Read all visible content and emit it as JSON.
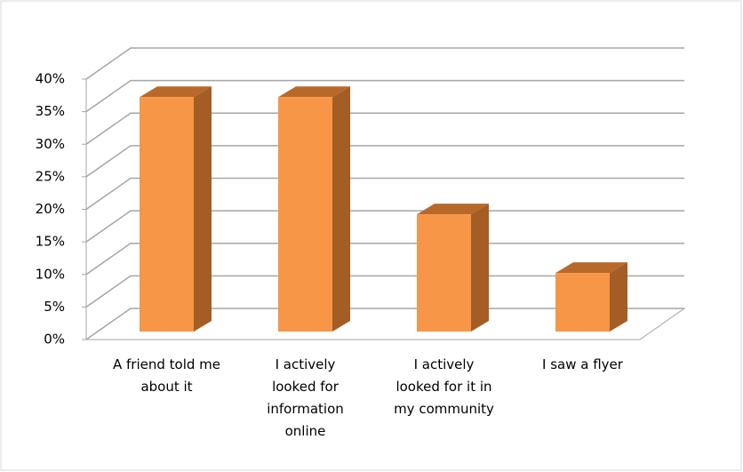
{
  "chart_data": {
    "type": "bar3d",
    "categories": [
      "A friend told me about it",
      "I actively looked for information online",
      "I actively looked for it in my community",
      "I saw a flyer"
    ],
    "values": [
      36,
      36,
      18,
      9
    ],
    "color": "#f79646",
    "ylim": [
      0,
      40
    ],
    "yticks": [
      {
        "value": 0,
        "label": "0%"
      },
      {
        "value": 5,
        "label": "5%"
      },
      {
        "value": 10,
        "label": "10%"
      },
      {
        "value": 15,
        "label": "15%"
      },
      {
        "value": 20,
        "label": "20%"
      },
      {
        "value": 25,
        "label": "25%"
      },
      {
        "value": 30,
        "label": "30%"
      },
      {
        "value": 35,
        "label": "35%"
      },
      {
        "value": 40,
        "label": "40%"
      }
    ],
    "grid": true
  }
}
